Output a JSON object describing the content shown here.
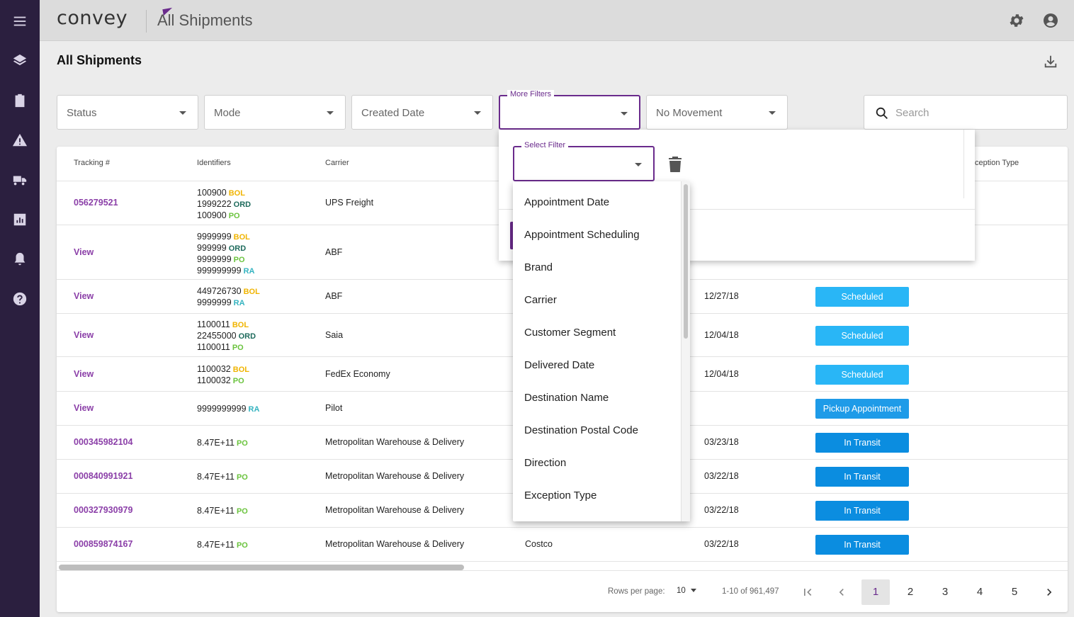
{
  "app": {
    "logo": "convey",
    "title": "All Shipments"
  },
  "sidebar": {
    "items": [
      {
        "icon": "menu-icon"
      },
      {
        "icon": "layers-icon"
      },
      {
        "icon": "clipboard-icon"
      },
      {
        "icon": "warning-icon"
      },
      {
        "icon": "truck-icon"
      },
      {
        "icon": "chart-icon"
      },
      {
        "icon": "bell-icon"
      },
      {
        "icon": "help-icon"
      }
    ]
  },
  "page": {
    "title": "All Shipments"
  },
  "filters": {
    "status": "Status",
    "mode": "Mode",
    "created_date": "Created Date",
    "more_filters_label": "More Filters",
    "no_movement": "No Movement",
    "search_placeholder": "Search"
  },
  "table": {
    "headers": {
      "tracking": "Tracking #",
      "identifiers": "Identifiers",
      "carrier": "Carrier",
      "exception_type": "ception Type"
    },
    "rows": [
      {
        "tracking": "056279521",
        "identifiers": [
          [
            "100900",
            "BOL"
          ],
          [
            "1999222",
            "ORD"
          ],
          [
            "100900",
            "PO"
          ]
        ],
        "carrier": "UPS Freight",
        "col4": "",
        "date": "",
        "status": ""
      },
      {
        "tracking": "View",
        "identifiers": [
          [
            "9999999",
            "BOL"
          ],
          [
            "999999",
            "ORD"
          ],
          [
            "9999999",
            "PO"
          ],
          [
            "999999999",
            "RA"
          ]
        ],
        "carrier": "ABF",
        "col4": "",
        "date": "",
        "status": ""
      },
      {
        "tracking": "View",
        "identifiers": [
          [
            "449726730",
            "BOL"
          ],
          [
            "9999999",
            "RA"
          ]
        ],
        "carrier": "ABF",
        "col4": "",
        "date": "12/27/18",
        "status": "Scheduled"
      },
      {
        "tracking": "View",
        "identifiers": [
          [
            "1100011",
            "BOL"
          ],
          [
            "22455000",
            "ORD"
          ],
          [
            "1100011",
            "PO"
          ]
        ],
        "carrier": "Saia",
        "col4": "",
        "date": "12/04/18",
        "status": "Scheduled"
      },
      {
        "tracking": "View",
        "identifiers": [
          [
            "1100032",
            "BOL"
          ],
          [
            "1100032",
            "PO"
          ]
        ],
        "carrier": "FedEx Economy",
        "col4": "",
        "date": "12/04/18",
        "status": "Scheduled"
      },
      {
        "tracking": "View",
        "identifiers": [
          [
            "9999999999",
            "RA"
          ]
        ],
        "carrier": "Pilot",
        "col4": "",
        "date": "",
        "status": "Pickup Appointment"
      },
      {
        "tracking": "000345982104",
        "identifiers": [
          [
            "8.47E+11",
            "PO"
          ]
        ],
        "carrier": "Metropolitan Warehouse & Delivery",
        "col4": "",
        "date": "03/23/18",
        "status": "In Transit"
      },
      {
        "tracking": "000840991921",
        "identifiers": [
          [
            "8.47E+11",
            "PO"
          ]
        ],
        "carrier": "Metropolitan Warehouse & Delivery",
        "col4": "",
        "date": "03/22/18",
        "status": "In Transit"
      },
      {
        "tracking": "000327930979",
        "identifiers": [
          [
            "8.47E+11",
            "PO"
          ]
        ],
        "carrier": "Metropolitan Warehouse & Delivery",
        "col4": "",
        "date": "03/22/18",
        "status": "In Transit"
      },
      {
        "tracking": "000859874167",
        "identifiers": [
          [
            "8.47E+11",
            "PO"
          ]
        ],
        "carrier": "Metropolitan Warehouse & Delivery",
        "col4": "Costco",
        "date": "03/22/18",
        "status": "In Transit"
      }
    ]
  },
  "status_colors": {
    "Scheduled": "#29b6f6",
    "Pickup Appointment": "#1e9be8",
    "In Transit": "#0b8de0"
  },
  "pagination": {
    "rows_label": "Rows per page:",
    "rows_value": "10",
    "range": "1-10 of 961,497",
    "pages": [
      "1",
      "2",
      "3",
      "4",
      "5"
    ],
    "current": "1"
  },
  "more_filters_panel": {
    "select_label": "Select Filter",
    "options": [
      "Appointment Date",
      "Appointment Scheduling",
      "Brand",
      "Carrier",
      "Customer Segment",
      "Delivered Date",
      "Destination Name",
      "Destination Postal Code",
      "Direction",
      "Exception Type"
    ]
  },
  "colors": {
    "accent": "#6a2b8c",
    "sidebar": "#2b1f3f"
  }
}
